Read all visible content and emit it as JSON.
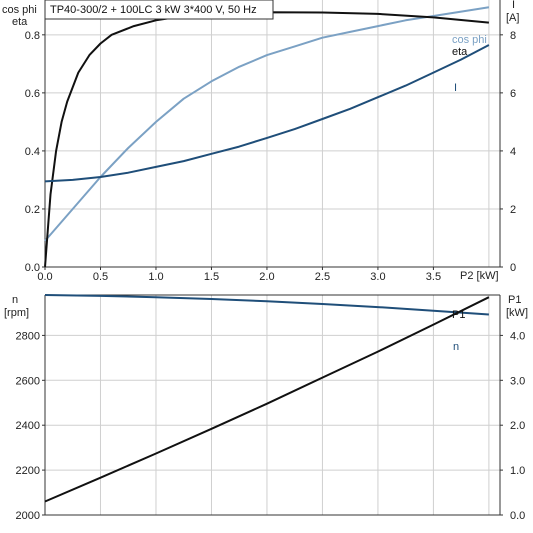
{
  "chart_data": [
    {
      "type": "line",
      "title": "TP40-300/2 + 100LC   3 kW   3*400 V, 50 Hz",
      "xlabel": "P2 [kW]",
      "ylabel_left": [
        "cos phi",
        "eta"
      ],
      "ylabel_right": [
        "I",
        "[A]"
      ],
      "xlim": [
        0,
        4.1
      ],
      "ylim_left": [
        0,
        0.92
      ],
      "ylim_right": [
        0,
        9.2
      ],
      "x_ticks": [
        "0.0",
        "0.5",
        "1.0",
        "1.5",
        "2.0",
        "2.5",
        "3.0",
        "3.5"
      ],
      "left_ticks": [
        "0.0",
        "0.2",
        "0.4",
        "0.6",
        "0.8"
      ],
      "right_ticks": [
        "0",
        "2",
        "4",
        "6",
        "8"
      ],
      "grid": true,
      "series": [
        {
          "name": "cos phi",
          "axis": "left",
          "color": "#7ba1c4",
          "x": [
            0,
            0.25,
            0.5,
            0.75,
            1.0,
            1.25,
            1.5,
            1.75,
            2.0,
            2.25,
            2.5,
            2.75,
            3.0,
            3.25,
            3.5,
            3.75,
            4.0
          ],
          "y": [
            0.09,
            0.2,
            0.31,
            0.41,
            0.5,
            0.58,
            0.64,
            0.69,
            0.73,
            0.76,
            0.79,
            0.81,
            0.83,
            0.85,
            0.865,
            0.88,
            0.895
          ]
        },
        {
          "name": "eta",
          "axis": "left",
          "color": "#111111",
          "x": [
            0,
            0.05,
            0.1,
            0.15,
            0.2,
            0.3,
            0.4,
            0.5,
            0.6,
            0.8,
            1.0,
            1.25,
            1.5,
            2.0,
            2.5,
            3.0,
            3.5,
            4.0
          ],
          "y": [
            0.0,
            0.25,
            0.4,
            0.5,
            0.57,
            0.67,
            0.73,
            0.77,
            0.8,
            0.83,
            0.85,
            0.865,
            0.872,
            0.878,
            0.877,
            0.872,
            0.86,
            0.842
          ]
        },
        {
          "name": "I",
          "axis": "right",
          "color": "#1f4e79",
          "x": [
            0,
            0.25,
            0.5,
            0.75,
            1.0,
            1.25,
            1.5,
            1.75,
            2.0,
            2.25,
            2.5,
            2.75,
            3.0,
            3.25,
            3.5,
            3.75,
            4.0
          ],
          "y": [
            2.95,
            3.0,
            3.1,
            3.25,
            3.45,
            3.65,
            3.9,
            4.15,
            4.45,
            4.75,
            5.1,
            5.45,
            5.85,
            6.25,
            6.7,
            7.15,
            7.65
          ]
        }
      ]
    },
    {
      "type": "line",
      "xlabel": "",
      "ylabel_left": [
        "n",
        "[rpm]"
      ],
      "ylabel_right": [
        "P1",
        "[kW]"
      ],
      "xlim": [
        0,
        4.1
      ],
      "ylim_left": [
        2000,
        2980
      ],
      "ylim_right": [
        0,
        4.9
      ],
      "left_ticks": [
        "2000",
        "2200",
        "2400",
        "2600",
        "2800"
      ],
      "right_ticks": [
        "0.0",
        "1.0",
        "2.0",
        "3.0",
        "4.0"
      ],
      "grid": true,
      "series": [
        {
          "name": "n",
          "axis": "left",
          "color": "#1f4e79",
          "x": [
            0,
            0.5,
            1.0,
            1.5,
            2.0,
            2.5,
            3.0,
            3.5,
            4.0
          ],
          "y": [
            2980,
            2976,
            2970,
            2962,
            2952,
            2940,
            2926,
            2910,
            2893
          ]
        },
        {
          "name": "P1",
          "axis": "right",
          "color": "#111111",
          "x": [
            0,
            0.5,
            1.0,
            1.5,
            2.0,
            2.5,
            3.0,
            3.5,
            4.0
          ],
          "y": [
            0.3,
            0.83,
            1.37,
            1.92,
            2.48,
            3.06,
            3.64,
            4.24,
            4.85
          ]
        }
      ]
    }
  ]
}
